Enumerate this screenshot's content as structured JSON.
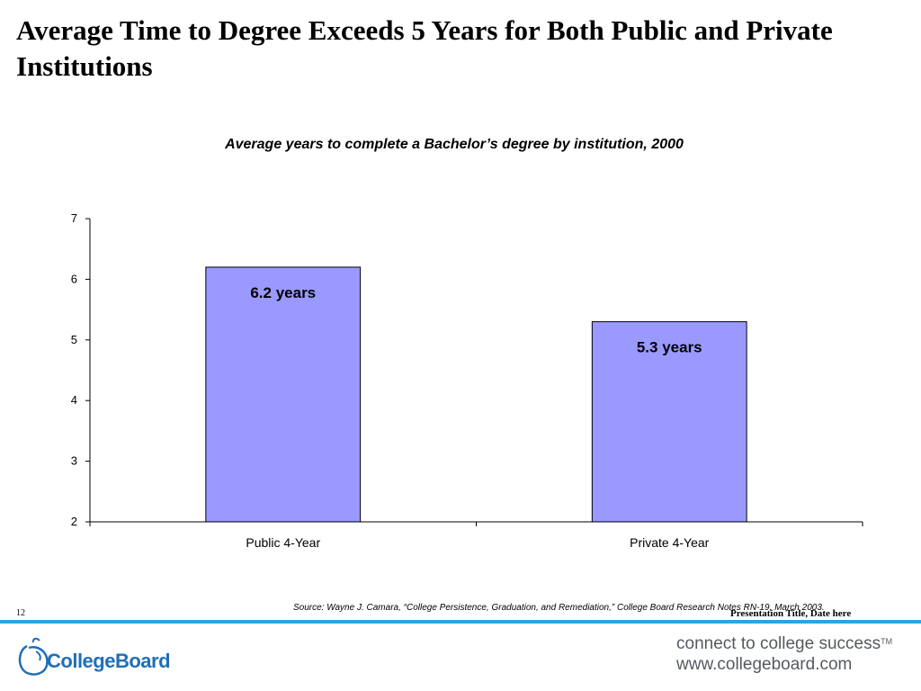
{
  "slide": {
    "title": "Average Time to Degree Exceeds 5 Years for Both Public and Private Institutions",
    "page_number": "12",
    "source": "Source: Wayne J. Camara, “College Persistence, Graduation, and Remediation,” College Board Research Notes RN-19, March 2003.",
    "presentation_title": "Presentation Title, Date here"
  },
  "branding": {
    "logo_text": "CollegeBoard",
    "tagline_line1": "connect to college success",
    "tagline_tm": "TM",
    "tagline_line2": "www.collegeboard.com",
    "accent_color": "#2aa6dd",
    "logo_color": "#1f6fb7"
  },
  "chart_data": {
    "type": "bar",
    "title": "Average years to complete a Bachelor’s degree by institution, 2000",
    "categories": [
      "Public 4-Year",
      "Private 4-Year"
    ],
    "values": [
      6.2,
      5.3
    ],
    "data_labels": [
      "6.2 years",
      "5.3 years"
    ],
    "ylim": [
      2,
      7
    ],
    "yticks": [
      2,
      3,
      4,
      5,
      6,
      7
    ],
    "xlabel": "",
    "ylabel": "",
    "bar_color": "#9999ff",
    "grid": false,
    "legend": "none"
  }
}
